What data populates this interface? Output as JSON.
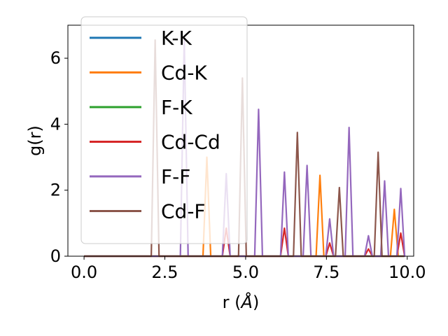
{
  "chart_data": {
    "type": "line",
    "xlabel_main": "r (",
    "xlabel_unit": "Å",
    "xlabel_close": ")",
    "ylabel": "g(r)",
    "xlim": [
      -0.5,
      10.2
    ],
    "ylim": [
      0,
      7.0
    ],
    "x_ticks": [
      0.0,
      2.5,
      5.0,
      7.5,
      10.0
    ],
    "x_tick_labels": [
      "0.0",
      "2.5",
      "5.0",
      "7.5",
      "10.0"
    ],
    "y_ticks": [
      0,
      2,
      4,
      6
    ],
    "y_tick_labels": [
      "0",
      "2",
      "4",
      "6"
    ],
    "grid": false,
    "legend_position": "top-left",
    "x_start": 0.0,
    "x_end": 9.9,
    "peak_halfwidth": 0.12,
    "series": [
      {
        "name": "K-K",
        "color": "#1f77b4",
        "peaks": []
      },
      {
        "name": "Cd-K",
        "color": "#ff7f0e",
        "peaks": [
          [
            3.8,
            3.0
          ],
          [
            7.3,
            2.45
          ],
          [
            9.6,
            1.42
          ]
        ]
      },
      {
        "name": "F-K",
        "color": "#2ca02c",
        "peaks": []
      },
      {
        "name": "Cd-Cd",
        "color": "#d62728",
        "peaks": [
          [
            4.4,
            0.85
          ],
          [
            6.2,
            0.85
          ],
          [
            7.6,
            0.4
          ],
          [
            8.8,
            0.22
          ],
          [
            9.8,
            0.7
          ]
        ]
      },
      {
        "name": "F-F",
        "color": "#9467bd",
        "peaks": [
          [
            3.1,
            6.6
          ],
          [
            4.4,
            2.5
          ],
          [
            5.4,
            4.45
          ],
          [
            6.2,
            2.55
          ],
          [
            6.9,
            2.75
          ],
          [
            7.6,
            1.13
          ],
          [
            8.2,
            3.9
          ],
          [
            8.8,
            0.62
          ],
          [
            9.3,
            2.28
          ],
          [
            9.8,
            2.05
          ]
        ]
      },
      {
        "name": "Cd-F",
        "color": "#8c564b",
        "peaks": [
          [
            2.2,
            6.55
          ],
          [
            4.9,
            5.4
          ],
          [
            6.6,
            3.75
          ],
          [
            7.9,
            2.08
          ],
          [
            9.1,
            3.15
          ]
        ]
      }
    ]
  }
}
